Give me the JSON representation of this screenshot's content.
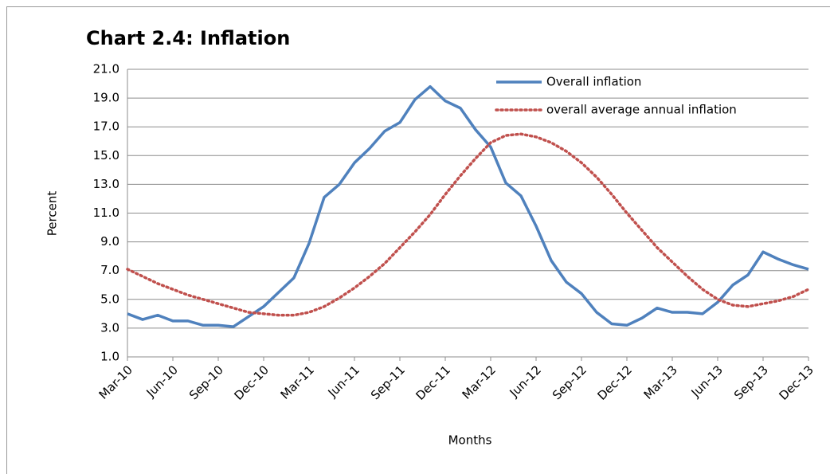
{
  "chart_data": {
    "type": "line",
    "title": "Chart 2.4:  Inflation",
    "x_label": "Months",
    "y_label": "Percent",
    "categories": [
      "Mar-10",
      null,
      null,
      "Jun-10",
      null,
      null,
      "Sep-10",
      null,
      null,
      "Dec-10",
      null,
      null,
      "Mar-11",
      null,
      null,
      "Jun-11",
      null,
      null,
      "Sep-11",
      null,
      null,
      "Dec-11",
      null,
      null,
      "Mar-12",
      null,
      null,
      "Jun-12",
      null,
      null,
      "Sep-12",
      null,
      null,
      "Dec-12",
      null,
      null,
      "Mar-13",
      null,
      null,
      "Jun-13",
      null,
      null,
      "Sep-13",
      null,
      null,
      "Dec-13"
    ],
    "series": [
      {
        "name": "Overall inflation",
        "color": "#4f81bd",
        "line_style": "solid",
        "values": [
          4.0,
          3.6,
          3.9,
          3.5,
          3.5,
          3.2,
          3.2,
          3.1,
          3.8,
          4.5,
          5.5,
          6.5,
          8.9,
          12.1,
          13.0,
          14.5,
          15.5,
          16.7,
          17.3,
          18.9,
          19.8,
          18.8,
          18.3,
          16.8,
          15.6,
          13.1,
          12.2,
          10.1,
          7.7,
          6.2,
          5.4,
          4.1,
          3.3,
          3.2,
          3.7,
          4.4,
          4.1,
          4.1,
          4.0,
          4.8,
          6.0,
          6.7,
          8.3,
          7.8,
          7.4,
          7.1
        ]
      },
      {
        "name": "overall average annual inflation",
        "color": "#c0504d",
        "line_style": "dotted",
        "values": [
          7.1,
          6.6,
          6.1,
          5.7,
          5.3,
          5.0,
          4.7,
          4.4,
          4.1,
          4.0,
          3.9,
          3.9,
          4.1,
          4.5,
          5.1,
          5.8,
          6.6,
          7.5,
          8.6,
          9.7,
          10.9,
          12.3,
          13.6,
          14.8,
          15.9,
          16.4,
          16.5,
          16.3,
          15.9,
          15.3,
          14.5,
          13.5,
          12.3,
          11.0,
          9.8,
          8.6,
          7.6,
          6.6,
          5.7,
          5.0,
          4.6,
          4.5,
          4.7,
          4.9,
          5.2,
          5.7
        ]
      }
    ],
    "ylim": [
      1,
      21
    ],
    "yticks": [
      {
        "value": 1,
        "label": "1.0"
      },
      {
        "value": 3,
        "label": "3.0"
      },
      {
        "value": 5,
        "label": "5.0"
      },
      {
        "value": 7,
        "label": "7.0"
      },
      {
        "value": 9,
        "label": "9.0"
      },
      {
        "value": 11,
        "label": "11.0"
      },
      {
        "value": 13,
        "label": "13.0"
      },
      {
        "value": 15,
        "label": "15.0"
      },
      {
        "value": 17,
        "label": "17.0"
      },
      {
        "value": 19,
        "label": "19.0"
      },
      {
        "value": 21,
        "label": "21.0"
      }
    ],
    "grid": true
  }
}
